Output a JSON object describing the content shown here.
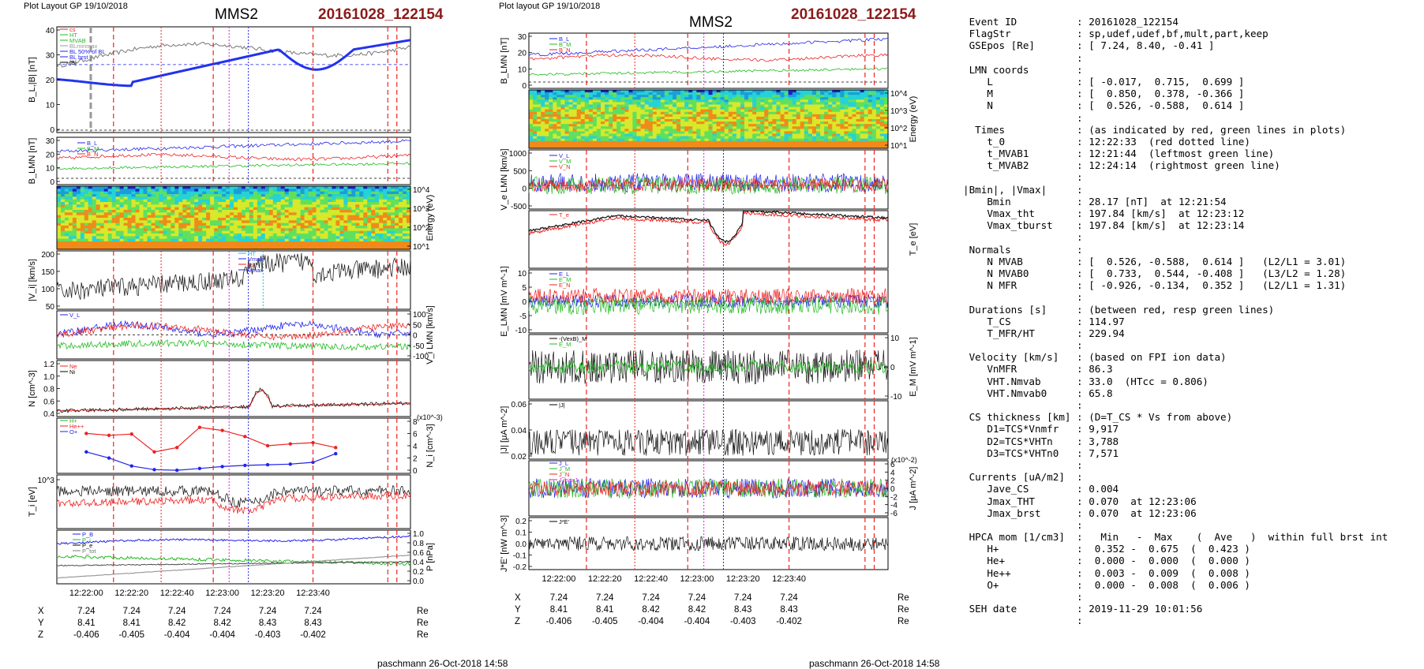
{
  "left": {
    "header": "Plot Layout GP 19/10/2018",
    "spacecraft": "MMS2",
    "event": "20161028_122154",
    "footer": "paschmann 26-Oct-2018 14:58",
    "time_ticks": [
      "12:22:00",
      "12:22:20",
      "12:22:40",
      "12:23:00",
      "12:23:20",
      "12:23:40"
    ],
    "coords": {
      "labels": [
        "X",
        "Y",
        "Z"
      ],
      "X": [
        "7.24",
        "7.24",
        "7.24",
        "7.24",
        "7.24",
        "7.24"
      ],
      "Y": [
        "8.41",
        "8.41",
        "8.42",
        "8.42",
        "8.43",
        "8.43"
      ],
      "Z": [
        "-0.406",
        "-0.405",
        "-0.404",
        "-0.404",
        "-0.403",
        "-0.402"
      ],
      "unit": "Re"
    },
    "panels": [
      {
        "ylabel": "B_L,|B| [nT]",
        "ticks": [
          "40",
          "30",
          "20",
          "10",
          "0"
        ],
        "legend": [
          "cs",
          "HT",
          "MVAB",
          "BLminmax",
          "BL 50% of BL",
          "BL brst",
          "|B|"
        ],
        "legend_colors": [
          "#ee2222",
          "#22bb22",
          "#22bb22",
          "#999999",
          "#2222ee",
          "#2222ee",
          "#000000"
        ]
      },
      {
        "ylabel": "B_LMN [nT]",
        "ticks": [
          "30",
          "20",
          "10",
          "0"
        ],
        "legend": [
          "B_L",
          "B_M",
          "B_N"
        ],
        "legend_colors": [
          "#2222ee",
          "#22bb22",
          "#ee2222"
        ]
      },
      {
        "ylabel": "Energy (eV)",
        "ticks": [
          "10^4",
          "10^3",
          "10^2",
          "10^1"
        ]
      },
      {
        "ylabel": "|V_i| [km/s]",
        "ticks": [
          "200",
          "150",
          "100",
          "50"
        ],
        "legend": [
          "HT",
          "Vmax",
          "cs",
          "Vmax"
        ],
        "legend_colors": [
          "#22bbdd",
          "#2222ee",
          "#ee2222",
          "#2222ee"
        ]
      },
      {
        "ylabel": "V_i LMN [km/s]",
        "ticks": [
          "100",
          "50",
          "0",
          "-50",
          "-100"
        ],
        "legend": [
          "V_L"
        ],
        "legend_colors": [
          "#2222ee"
        ]
      },
      {
        "ylabel": "N [cm^-3]",
        "ticks": [
          "1.2",
          "1.0",
          "0.8",
          "0.6",
          "0.4"
        ],
        "legend": [
          "Ne",
          "Ni"
        ],
        "legend_colors": [
          "#ee2222",
          "#000000"
        ]
      },
      {
        "ylabel": "N_i [cm^-3]",
        "ticks": [
          "8",
          "6",
          "4",
          "2",
          "0"
        ],
        "legend": [
          "H+",
          "He++",
          "O+"
        ],
        "legend_colors": [
          "#22bb22",
          "#ee2222",
          "#2222ee"
        ],
        "exponent": "(x10^-3)"
      },
      {
        "ylabel": "T_i [eV]",
        "ticks": [
          "10^3"
        ]
      },
      {
        "ylabel": "P [nPa]",
        "ticks": [
          "1.0",
          "0.8",
          "0.6",
          "0.4",
          "0.2",
          "0.0"
        ],
        "legend": [
          "P_B",
          "P_i",
          "P_e",
          "P_tot"
        ],
        "legend_colors": [
          "#2222ee",
          "#22bb22",
          "#000000",
          "#777777"
        ]
      }
    ]
  },
  "middle": {
    "header": "Plot layout GP 19/10/2018",
    "spacecraft": "MMS2",
    "event": "20161028_122154",
    "footer": "paschmann 26-Oct-2018 14:58",
    "time_ticks": [
      "12:22:00",
      "12:22:20",
      "12:22:40",
      "12:23:00",
      "12:23:20",
      "12:23:40"
    ],
    "coords": {
      "labels": [
        "X",
        "Y",
        "Z"
      ],
      "X": [
        "7.24",
        "7.24",
        "7.24",
        "7.24",
        "7.24",
        "7.24"
      ],
      "Y": [
        "8.41",
        "8.41",
        "8.42",
        "8.42",
        "8.43",
        "8.43"
      ],
      "Z": [
        "-0.406",
        "-0.405",
        "-0.404",
        "-0.404",
        "-0.403",
        "-0.402"
      ],
      "unit": "Re"
    },
    "panels": [
      {
        "ylabel": "B_LMN [nT]",
        "ticks": [
          "30",
          "20",
          "10",
          "0"
        ],
        "legend": [
          "B_L",
          "B_M",
          "B_N"
        ],
        "legend_colors": [
          "#2222ee",
          "#22bb22",
          "#ee2222"
        ]
      },
      {
        "ylabel": "Energy (eV)",
        "ticks": [
          "10^4",
          "10^3",
          "10^2",
          "10^1"
        ]
      },
      {
        "ylabel": "V_e LMN [km/s]",
        "ticks": [
          "1000",
          "500",
          "0",
          "-500"
        ],
        "legend": [
          "V_L",
          "V_M",
          "V_N"
        ],
        "legend_colors": [
          "#2222ee",
          "#22bb22",
          "#ee2222"
        ]
      },
      {
        "ylabel": "T_e [eV]",
        "ticks": [],
        "legend": [
          "T_e"
        ],
        "legend_colors": [
          "#ee2222"
        ]
      },
      {
        "ylabel": "E_LMN [mV m^-1]",
        "ticks": [
          "10",
          "5",
          "0",
          "-5",
          "-10"
        ],
        "legend": [
          "E_L",
          "E_M",
          "E_N"
        ],
        "legend_colors": [
          "#2222ee",
          "#22bb22",
          "#ee2222"
        ]
      },
      {
        "ylabel": "E_M [mV m^-1]",
        "ticks": [
          "10",
          "0",
          "-10"
        ],
        "legend": [
          "-(VexB)_M",
          "E_M"
        ],
        "legend_colors": [
          "#000000",
          "#22bb22"
        ]
      },
      {
        "ylabel": "|J| [μA m^-2]",
        "ticks": [
          "0.06",
          "0.04",
          "0.02"
        ],
        "legend": [
          "|J|"
        ],
        "legend_colors": [
          "#000000"
        ]
      },
      {
        "ylabel": "J [μA m^-2]",
        "ticks": [
          "6",
          "4",
          "2",
          "0",
          "-2",
          "-4",
          "-6"
        ],
        "legend": [
          "J_L",
          "J_M",
          "J_N",
          "J maxJ"
        ],
        "legend_colors": [
          "#2222ee",
          "#22bb22",
          "#ee2222",
          "#cc22cc"
        ],
        "exponent": "(x10^-2)"
      },
      {
        "ylabel": "J*E' [nW m^-3]",
        "ticks": [
          "0.2",
          "0.1",
          "0.0",
          "-0.1",
          "-0.2"
        ],
        "legend": [
          "J*E'"
        ],
        "legend_colors": [
          "#000000"
        ]
      }
    ]
  },
  "markers": {
    "red_dash": [
      12.0,
      56.0,
      100.0,
      133.0,
      137.0
    ],
    "red_dotted": 33.0,
    "magenta_dotted": 63.0,
    "blue_dotted": 71.5,
    "grey_dash": -5.0
  },
  "chart_data": [
    {
      "type": "line",
      "title": "MMS2 20161028_122154",
      "xlabel": "",
      "x_ticks": [
        "12:22:00",
        "12:22:20",
        "12:22:40",
        "12:23:00",
        "12:23:20",
        "12:23:40"
      ],
      "series": [
        {
          "name": "B_L",
          "panel": "B_L,|B| [nT]",
          "x": [
            0,
            10,
            20,
            30,
            40,
            50,
            60,
            70,
            80,
            90,
            100,
            110,
            120,
            130,
            140
          ],
          "values": [
            20,
            19,
            19,
            22,
            24,
            28,
            30,
            31,
            33,
            34,
            31,
            27,
            28,
            34,
            36
          ]
        },
        {
          "name": "|B|",
          "panel": "B_L,|B| [nT]",
          "x": [
            0,
            20,
            40,
            60,
            80,
            100,
            120,
            140
          ],
          "values": [
            29,
            30,
            33,
            38,
            39,
            36,
            33,
            40
          ]
        },
        {
          "name": "Ne",
          "panel": "N [cm^-3]",
          "x": [
            0,
            20,
            40,
            60,
            70,
            75,
            80,
            100,
            120,
            140
          ],
          "values": [
            0.45,
            0.48,
            0.52,
            0.58,
            0.62,
            0.75,
            0.6,
            0.5,
            0.52,
            0.55
          ]
        },
        {
          "name": "H+",
          "panel": "N_i",
          "x": [
            0,
            10,
            20,
            30,
            40,
            50,
            60,
            70,
            80,
            90,
            100,
            110,
            120
          ],
          "values": [
            6.5,
            6.2,
            6.4,
            3.5,
            4.2,
            7.5,
            7.0,
            6.0,
            4.5,
            4.8,
            5.0,
            4.2,
            null
          ]
        },
        {
          "name": "O+",
          "panel": "N_i",
          "x": [
            0,
            10,
            20,
            30,
            40,
            50,
            60,
            70,
            80,
            90,
            100,
            110,
            120
          ],
          "values": [
            3.5,
            2.5,
            1.2,
            0.6,
            0.5,
            0.8,
            1.1,
            1.3,
            1.4,
            1.5,
            1.8,
            3.2,
            null
          ]
        }
      ]
    }
  ],
  "summary_lines": [
    " Event ID          : 20161028_122154",
    " FlagStr           : sp,udef,udef,bf,mult,part,keep",
    " GSEpos [Re]       : [ 7.24, 8.40, -0.41 ]",
    "                   :",
    " LMN coords        :",
    "    L              : [ -0.017,  0.715,  0.699 ]",
    "    M              : [  0.850,  0.378, -0.366 ]",
    "    N              : [  0.526, -0.588,  0.614 ]",
    "                   :",
    "  Times            : (as indicated by red, green lines in plots)",
    "    t_0            : 12:22:33  (red dotted line)",
    "    t_MVAB1        : 12:21:44  (leftmost green line)",
    "    t_MVAB2        : 12:24:14  (rightmost green line)",
    "                   :",
    "|Bmin|, |Vmax|     :",
    "    Bmin           : 28.17 [nT]  at 12:21:54",
    "    Vmax_tht       : 197.84 [km/s]  at 12:23:12",
    "    Vmax_tburst    : 197.84 [km/s]  at 12:23:14",
    "                   :",
    " Normals           :",
    "    N MVAB         : [  0.526, -0.588,  0.614 ]   (L2/L1 = 3.01)",
    "    N MVAB0        : [  0.733,  0.544, -0.408 ]   (L3/L2 = 1.28)",
    "    N MFR          : [ -0.926, -0.134,  0.352 ]   (L2/L1 = 1.31)",
    "                   :",
    " Durations [s]     : (between red, resp green lines)",
    "    T_CS           : 114.97",
    "    T_MFR/HT       : 229.94",
    "                   :",
    " Velocity [km/s]   : (based on FPI ion data)",
    "    VnMFR          : 86.3",
    "    VHT.Nmvab      : 33.0  (HTcc = 0.806)",
    "    VHT.Nmvab0     : 65.8",
    "                   :",
    " CS thickness [km] : (D=T_CS * Vs from above)",
    "    D1=TCS*Vnmfr   : 9,917",
    "    D2=TCS*VHTn    : 3,788",
    "    D3=TCS*VHTn0   : 7,571",
    "                   :",
    " Currents [uA/m2]  :",
    "    Jave_CS        : 0.004",
    "    Jmax_THT       : 0.070  at 12:23:06",
    "    Jmax_brst      : 0.070  at 12:23:06",
    "                   :",
    " HPCA mom [1/cm3]  :   Min   -  Max    (  Ave   )  within full brst int",
    "    H+             :  0.352 -  0.675  (  0.423 )",
    "    He+            :  0.000 -  0.000  (  0.000 )",
    "    He++           :  0.003 -  0.009  (  0.008 )",
    "    O+             :  0.000 -  0.008  (  0.006 )",
    "                   :",
    " SEH date          : 2019-11-29 10:01:56",
    "                   :"
  ]
}
